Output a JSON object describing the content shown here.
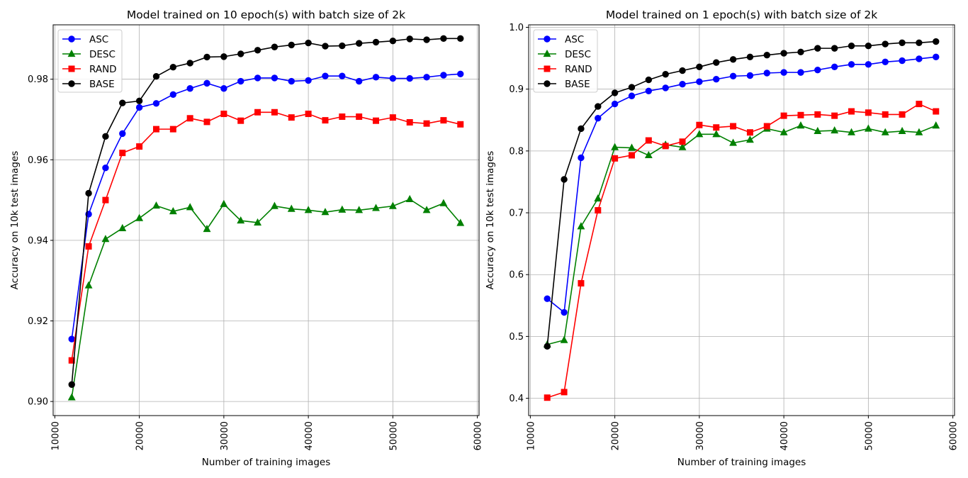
{
  "chart_data": [
    {
      "type": "line",
      "title": "Model trained on 10 epoch(s) with batch size of 2k",
      "xlabel": "Number of training images",
      "ylabel": "Accuracy on 10k test images",
      "xlim": [
        9800,
        60200
      ],
      "ylim": [
        0.8965,
        0.9935
      ],
      "x_ticks": [
        10000,
        20000,
        30000,
        40000,
        50000,
        60000
      ],
      "y_ticks": [
        0.9,
        0.92,
        0.94,
        0.96,
        0.98
      ],
      "y_tick_labels": [
        "0.90",
        "0.92",
        "0.94",
        "0.96",
        "0.98"
      ],
      "grid": true,
      "legend": "upper-left",
      "x": [
        12000,
        14000,
        16000,
        18000,
        20000,
        22000,
        24000,
        26000,
        28000,
        30000,
        32000,
        34000,
        36000,
        38000,
        40000,
        42000,
        44000,
        46000,
        48000,
        50000,
        52000,
        54000,
        56000,
        58000
      ],
      "series": [
        {
          "name": "ASC",
          "color": "#0000ff",
          "marker": "circle",
          "values": [
            0.9155,
            0.9465,
            0.958,
            0.9665,
            0.973,
            0.974,
            0.9762,
            0.9777,
            0.979,
            0.9777,
            0.9795,
            0.9803,
            0.9803,
            0.9795,
            0.9797,
            0.9808,
            0.9808,
            0.9795,
            0.9805,
            0.9802,
            0.9802,
            0.9805,
            0.981,
            0.9813
          ]
        },
        {
          "name": "DESC",
          "color": "#008000",
          "marker": "triangle",
          "values": [
            0.901,
            0.9288,
            0.9403,
            0.943,
            0.9455,
            0.9486,
            0.9472,
            0.9482,
            0.9428,
            0.949,
            0.9449,
            0.9444,
            0.9485,
            0.9478,
            0.9475,
            0.947,
            0.9476,
            0.9475,
            0.948,
            0.9485,
            0.9502,
            0.9475,
            0.9492,
            0.9443
          ]
        },
        {
          "name": "RAND",
          "color": "#ff0000",
          "marker": "square",
          "values": [
            0.9102,
            0.9385,
            0.95,
            0.9617,
            0.9633,
            0.9676,
            0.9676,
            0.9703,
            0.9694,
            0.9714,
            0.9697,
            0.9718,
            0.9718,
            0.9705,
            0.9714,
            0.9698,
            0.9707,
            0.9707,
            0.9697,
            0.9705,
            0.9693,
            0.969,
            0.9698,
            0.9688
          ]
        },
        {
          "name": "BASE",
          "color": "#000000",
          "marker": "circle",
          "values": [
            0.9042,
            0.9517,
            0.9658,
            0.9741,
            0.9746,
            0.9807,
            0.983,
            0.984,
            0.9855,
            0.9856,
            0.9863,
            0.9872,
            0.988,
            0.9885,
            0.989,
            0.9882,
            0.9883,
            0.9889,
            0.9892,
            0.9895,
            0.99,
            0.9898,
            0.9901,
            0.9901
          ]
        }
      ]
    },
    {
      "type": "line",
      "title": "Model trained on 1 epoch(s) with batch size of 2k",
      "xlabel": "Number of training images",
      "ylabel": "Accuracy on 10k test images",
      "xlim": [
        9800,
        60200
      ],
      "ylim": [
        0.372,
        1.004
      ],
      "x_ticks": [
        10000,
        20000,
        30000,
        40000,
        50000,
        60000
      ],
      "y_ticks": [
        0.4,
        0.5,
        0.6,
        0.7,
        0.8,
        0.9,
        1.0
      ],
      "y_tick_labels": [
        "0.4",
        "0.5",
        "0.6",
        "0.7",
        "0.8",
        "0.9",
        "1.0"
      ],
      "grid": true,
      "legend": "upper-left",
      "x": [
        12000,
        14000,
        16000,
        18000,
        20000,
        22000,
        24000,
        26000,
        28000,
        30000,
        32000,
        34000,
        36000,
        38000,
        40000,
        42000,
        44000,
        46000,
        48000,
        50000,
        52000,
        54000,
        56000,
        58000
      ],
      "series": [
        {
          "name": "ASC",
          "color": "#0000ff",
          "marker": "circle",
          "values": [
            0.561,
            0.539,
            0.789,
            0.853,
            0.876,
            0.889,
            0.897,
            0.902,
            0.908,
            0.912,
            0.916,
            0.921,
            0.922,
            0.926,
            0.927,
            0.927,
            0.931,
            0.936,
            0.94,
            0.94,
            0.944,
            0.946,
            0.949,
            0.952
          ]
        },
        {
          "name": "DESC",
          "color": "#008000",
          "marker": "triangle",
          "values": [
            0.487,
            0.494,
            0.678,
            0.723,
            0.806,
            0.805,
            0.793,
            0.81,
            0.806,
            0.827,
            0.827,
            0.813,
            0.818,
            0.836,
            0.83,
            0.841,
            0.832,
            0.833,
            0.83,
            0.836,
            0.83,
            0.832,
            0.83,
            0.841
          ]
        },
        {
          "name": "RAND",
          "color": "#ff0000",
          "marker": "square",
          "values": [
            0.401,
            0.41,
            0.586,
            0.704,
            0.788,
            0.793,
            0.817,
            0.808,
            0.815,
            0.842,
            0.838,
            0.84,
            0.83,
            0.84,
            0.857,
            0.858,
            0.859,
            0.857,
            0.864,
            0.862,
            0.859,
            0.859,
            0.876,
            0.864
          ]
        },
        {
          "name": "BASE",
          "color": "#000000",
          "marker": "circle",
          "values": [
            0.484,
            0.754,
            0.836,
            0.872,
            0.894,
            0.903,
            0.915,
            0.924,
            0.93,
            0.936,
            0.943,
            0.948,
            0.952,
            0.955,
            0.958,
            0.96,
            0.966,
            0.966,
            0.97,
            0.97,
            0.973,
            0.975,
            0.975,
            0.977
          ]
        }
      ]
    }
  ]
}
